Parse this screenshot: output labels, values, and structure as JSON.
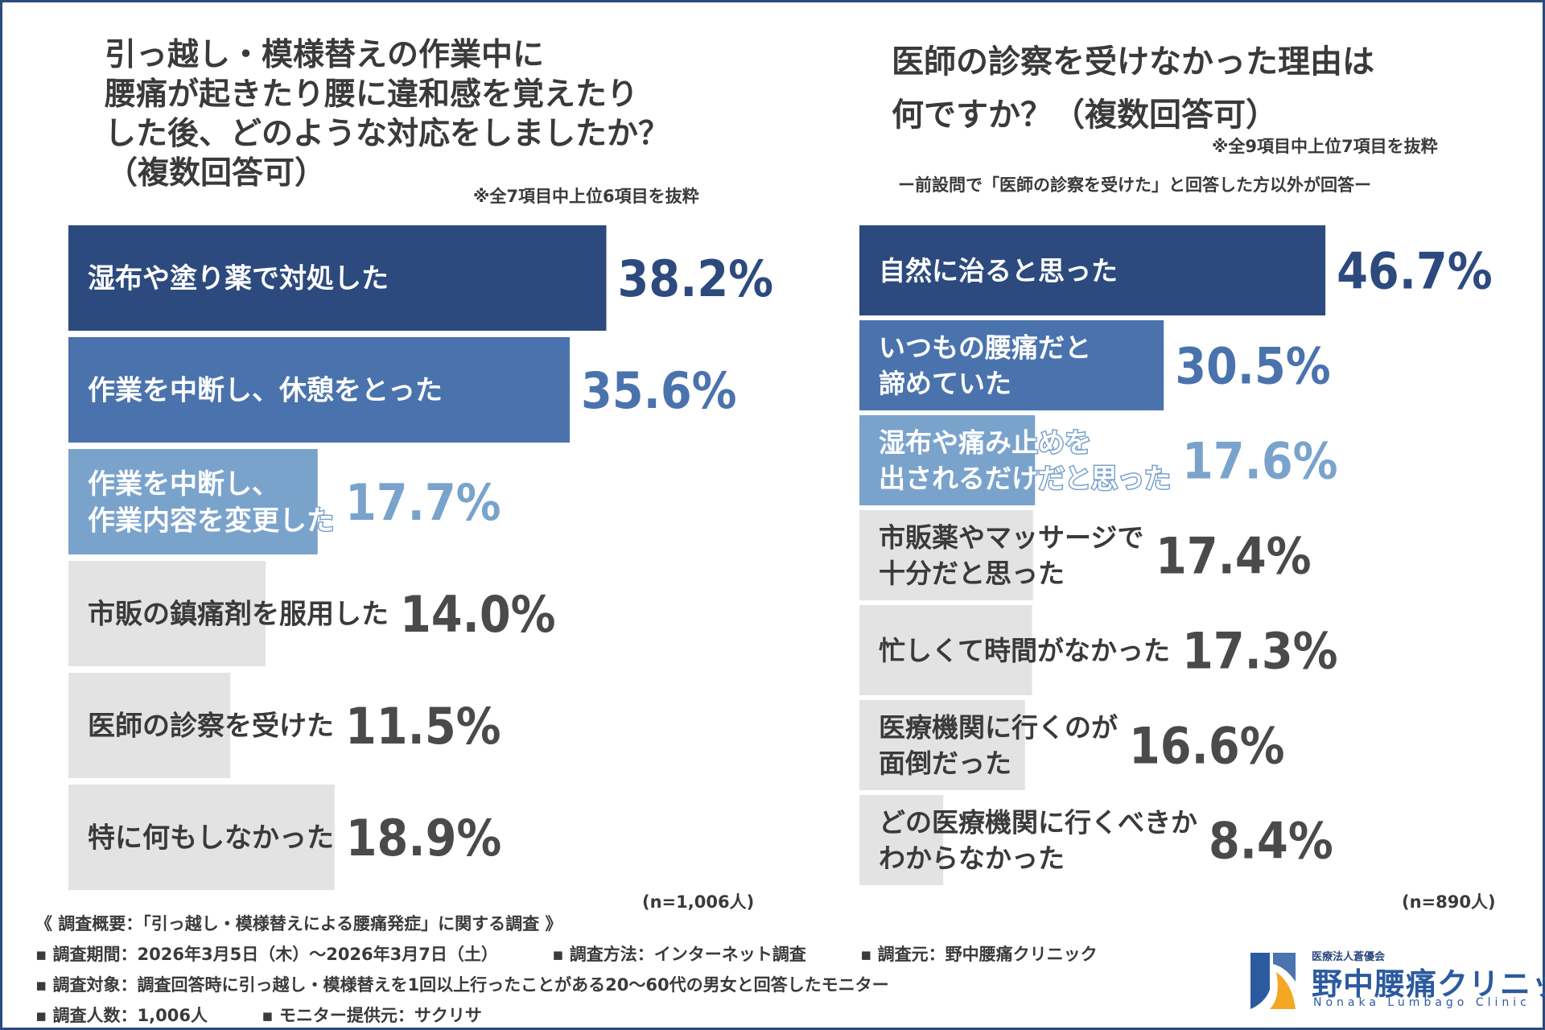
{
  "chart_data": [
    {
      "type": "bar",
      "title_lines": [
        "引っ越し・模様替えの作業中に",
        "腰痛が起きたり腰に違和感を覚えたり",
        "した後、どのような対応をしましたか？",
        "（複数回答可）"
      ],
      "note": "※全7項目中上位6項目を抜粋",
      "sample": "(n=1,006人)",
      "unit": "%",
      "categories": [
        [
          "湿布や塗り薬で対処した"
        ],
        [
          "作業を中断し、休憩をとった"
        ],
        [
          "作業を中断し、",
          "作業内容を変更した"
        ],
        [
          "市販の鎮痛剤を服用した"
        ],
        [
          "医師の診察を受けた"
        ],
        [
          "特に何もしなかった"
        ]
      ],
      "values": [
        38.2,
        35.6,
        17.7,
        14.0,
        11.5,
        18.9
      ],
      "value_labels": [
        "38.2%",
        "35.6%",
        "17.7%",
        "14.0%",
        "11.5%",
        "18.9%"
      ],
      "colors": [
        "#2c4a7e",
        "#4a73ad",
        "#7aa3cc",
        "#e3e3e3",
        "#e3e3e3",
        "#e3e3e3"
      ]
    },
    {
      "type": "bar",
      "title_lines": [
        "医師の診察を受けなかった理由は",
        "何ですか？（複数回答可）"
      ],
      "note": "※全9項目中上位7項目を抜粋",
      "subnote": "ー前設問で「医師の診察を受けた」と回答した方以外が回答ー",
      "sample": "(n=890人)",
      "unit": "%",
      "categories": [
        [
          "自然に治ると思った"
        ],
        [
          "いつもの腰痛だと",
          "諦めていた"
        ],
        [
          "湿布や痛み止めを",
          "出されるだけだと思った"
        ],
        [
          "市販薬やマッサージで",
          "十分だと思った"
        ],
        [
          "忙しくて時間がなかった"
        ],
        [
          "医療機関に行くのが",
          "面倒だった"
        ],
        [
          "どの医療機関に行くべきか",
          "わからなかった"
        ]
      ],
      "values": [
        46.7,
        30.5,
        17.6,
        17.4,
        17.3,
        16.6,
        8.4
      ],
      "value_labels": [
        "46.7%",
        "30.5%",
        "17.6%",
        "17.4%",
        "17.3%",
        "16.6%",
        "8.4%"
      ],
      "colors": [
        "#2c4a7e",
        "#4a73ad",
        "#7aa3cc",
        "#e3e3e3",
        "#e3e3e3",
        "#e3e3e3",
        "#e3e3e3"
      ]
    }
  ],
  "footer": {
    "overview": "《 調査概要：「引っ越し・模様替えによる腰痛発症」に関する調査 》",
    "period": "▪ 調査期間：2026年3月5日（木）〜2026年3月7日（土）",
    "method": "▪ 調査方法：インターネット調査",
    "source": "▪ 調査元：野中腰痛クリニック",
    "target": "▪ 調査対象：調査回答時に引っ越し・模様替えを1回以上行ったことがある20〜60代の男女と回答したモニター",
    "count": "▪ 調査人数：1,006人",
    "provider": "▪ モニター提供元：サクリサ"
  },
  "logo": {
    "org": "医療法人蒼優会",
    "name": "野中腰痛クリニック",
    "en": "Nonaka Lumbago Clinic",
    "accent": "#f5a623",
    "brand": "#2c5aa0"
  }
}
